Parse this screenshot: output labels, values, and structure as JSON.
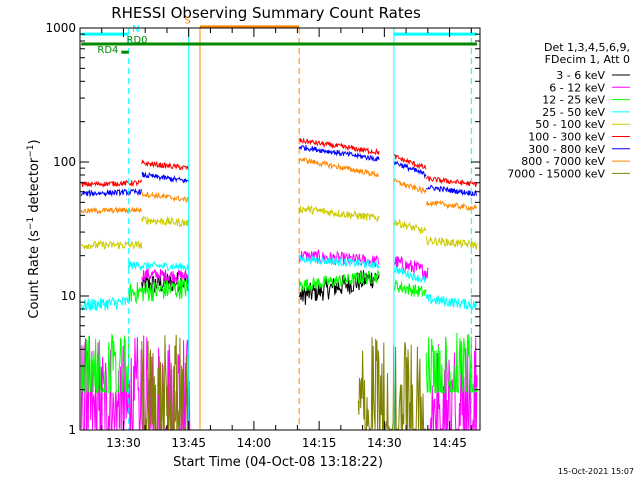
{
  "chart_data": {
    "type": "line",
    "title": "RHESSI Observing Summary Count Rates",
    "xlabel": "Start Time (04-Oct-08 13:18:22)",
    "ylabel": "Count Rate (s⁻¹ detector⁻¹)",
    "ylabel_base": "Count Rate (s",
    "ylabel_mid": " detector",
    "ylabel_end": ")",
    "ylabel_sup": "−1",
    "yscale": "log",
    "ylim": [
      1,
      1000
    ],
    "ytick_labels": [
      "1",
      "10",
      "100",
      "1000"
    ],
    "xlim_min": [
      20,
      112
    ],
    "xtick_labels": [
      "13:30",
      "13:45",
      "14:00",
      "14:15",
      "14:30",
      "14:45"
    ],
    "xtick_min": [
      30,
      45,
      60,
      75,
      90,
      105
    ],
    "legend_header": [
      "Det 1,3,4,5,6,9,",
      "FDecim 1, Att 0"
    ],
    "legend_position": "right-outside",
    "timestamp": "15-Oct-2021 15:07",
    "series": [
      {
        "name": "3 - 6 keV",
        "color": "#000000",
        "segments": [
          {
            "t0": 34.2,
            "t1": 45.0,
            "v0": 12,
            "v1": 13,
            "noise": 0.08,
            "lo_clip": 0
          },
          {
            "t0": 70.4,
            "t1": 88.8,
            "v0": 10,
            "v1": 14,
            "noise": 0.08,
            "lo_clip": 0
          }
        ]
      },
      {
        "name": "6 - 12 keV",
        "color": "#ff00ff",
        "segments": [
          {
            "t0": 20.3,
            "t1": 45.4,
            "v0": 1.3,
            "v1": 1.3,
            "noise": 0.6,
            "lo_clip": 1
          },
          {
            "t0": 34.2,
            "t1": 45.0,
            "v0": 14.5,
            "v1": 14.0,
            "noise": 0.05,
            "lo_clip": 0
          },
          {
            "t0": 70.4,
            "t1": 88.8,
            "v0": 20,
            "v1": 18,
            "noise": 0.05,
            "lo_clip": 0
          },
          {
            "t0": 92.2,
            "t1": 100,
            "v0": 18,
            "v1": 15,
            "noise": 0.06,
            "lo_clip": 0
          },
          {
            "t0": 100,
            "t1": 111.3,
            "v0": 1.3,
            "v1": 1.3,
            "noise": 0.6,
            "lo_clip": 1
          }
        ]
      },
      {
        "name": "12 - 25 keV",
        "color": "#00ff00",
        "segments": [
          {
            "t0": 20.3,
            "t1": 31.2,
            "v0": 2.4,
            "v1": 2.4,
            "noise": 0.35,
            "lo_clip": 1.9
          },
          {
            "t0": 31.2,
            "t1": 45.0,
            "v0": 10.5,
            "v1": 11.5,
            "noise": 0.08,
            "lo_clip": 0
          },
          {
            "t0": 70.4,
            "t1": 88.8,
            "v0": 12,
            "v1": 14,
            "noise": 0.05,
            "lo_clip": 0
          },
          {
            "t0": 92.2,
            "t1": 99.6,
            "v0": 12,
            "v1": 10.5,
            "noise": 0.05,
            "lo_clip": 0
          },
          {
            "t0": 99.6,
            "t1": 111.3,
            "v0": 2.5,
            "v1": 2.4,
            "noise": 0.35,
            "lo_clip": 1.9
          }
        ]
      },
      {
        "name": "25 - 50 keV",
        "color": "#00ffff",
        "segments": [
          {
            "t0": 20.3,
            "t1": 31.0,
            "v0": 8.5,
            "v1": 9.0,
            "noise": 0.05,
            "lo_clip": 0
          },
          {
            "t0": 31.0,
            "t1": 45.0,
            "v0": 17,
            "v1": 16.5,
            "noise": 0.03,
            "lo_clip": 0
          },
          {
            "t0": 70.4,
            "t1": 88.8,
            "v0": 19,
            "v1": 17,
            "noise": 0.03,
            "lo_clip": 0
          },
          {
            "t0": 92.2,
            "t1": 99.6,
            "v0": 16,
            "v1": 13,
            "noise": 0.03,
            "lo_clip": 0
          },
          {
            "t0": 99.6,
            "t1": 111.3,
            "v0": 9.5,
            "v1": 8.5,
            "noise": 0.04,
            "lo_clip": 0
          }
        ]
      },
      {
        "name": "50 - 100 keV",
        "color": "#cccc00",
        "segments": [
          {
            "t0": 20.3,
            "t1": 34.2,
            "v0": 24,
            "v1": 24,
            "noise": 0.03,
            "lo_clip": 0
          },
          {
            "t0": 34.2,
            "t1": 45.0,
            "v0": 37,
            "v1": 35,
            "noise": 0.03,
            "lo_clip": 0
          },
          {
            "t0": 70.4,
            "t1": 88.8,
            "v0": 45,
            "v1": 38,
            "noise": 0.03,
            "lo_clip": 0
          },
          {
            "t0": 92.2,
            "t1": 99.6,
            "v0": 36,
            "v1": 30,
            "noise": 0.03,
            "lo_clip": 0
          },
          {
            "t0": 99.6,
            "t1": 111.3,
            "v0": 26,
            "v1": 24,
            "noise": 0.03,
            "lo_clip": 0
          }
        ]
      },
      {
        "name": "100 - 300 keV",
        "color": "#ff0000",
        "segments": [
          {
            "t0": 20.3,
            "t1": 34.2,
            "v0": 68,
            "v1": 70,
            "noise": 0.02,
            "lo_clip": 0
          },
          {
            "t0": 34.2,
            "t1": 45.0,
            "v0": 98,
            "v1": 90,
            "noise": 0.02,
            "lo_clip": 0
          },
          {
            "t0": 70.4,
            "t1": 88.8,
            "v0": 145,
            "v1": 118,
            "noise": 0.02,
            "lo_clip": 0
          },
          {
            "t0": 92.2,
            "t1": 99.6,
            "v0": 110,
            "v1": 90,
            "noise": 0.02,
            "lo_clip": 0
          },
          {
            "t0": 99.6,
            "t1": 111.3,
            "v0": 75,
            "v1": 68,
            "noise": 0.02,
            "lo_clip": 0
          }
        ]
      },
      {
        "name": "300 - 800 keV",
        "color": "#0000ff",
        "segments": [
          {
            "t0": 20.3,
            "t1": 34.2,
            "v0": 58,
            "v1": 60,
            "noise": 0.02,
            "lo_clip": 0
          },
          {
            "t0": 34.2,
            "t1": 45.0,
            "v0": 80,
            "v1": 72,
            "noise": 0.02,
            "lo_clip": 0
          },
          {
            "t0": 70.4,
            "t1": 88.8,
            "v0": 130,
            "v1": 105,
            "noise": 0.02,
            "lo_clip": 0
          },
          {
            "t0": 92.2,
            "t1": 99.6,
            "v0": 100,
            "v1": 80,
            "noise": 0.02,
            "lo_clip": 0
          },
          {
            "t0": 99.6,
            "t1": 111.3,
            "v0": 65,
            "v1": 58,
            "noise": 0.02,
            "lo_clip": 0
          }
        ]
      },
      {
        "name": "800 - 7000 keV",
        "color": "#ff8800",
        "segments": [
          {
            "t0": 20.3,
            "t1": 34.2,
            "v0": 43,
            "v1": 44,
            "noise": 0.02,
            "lo_clip": 0
          },
          {
            "t0": 34.2,
            "t1": 45.0,
            "v0": 58,
            "v1": 52,
            "noise": 0.02,
            "lo_clip": 0
          },
          {
            "t0": 70.4,
            "t1": 88.8,
            "v0": 105,
            "v1": 80,
            "noise": 0.02,
            "lo_clip": 0
          },
          {
            "t0": 92.2,
            "t1": 99.6,
            "v0": 72,
            "v1": 60,
            "noise": 0.02,
            "lo_clip": 0
          },
          {
            "t0": 99.6,
            "t1": 111.3,
            "v0": 50,
            "v1": 45,
            "noise": 0.02,
            "lo_clip": 0
          }
        ]
      },
      {
        "name": "7000 - 15000 keV",
        "color": "#808000",
        "segments": [
          {
            "t0": 34.2,
            "t1": 45.0,
            "v0": 1.3,
            "v1": 1.3,
            "noise": 0.6,
            "lo_clip": 1
          },
          {
            "t0": 84.0,
            "t1": 99.6,
            "v0": 1.3,
            "v1": 1.3,
            "noise": 0.6,
            "lo_clip": 1
          }
        ]
      }
    ],
    "vlines": [
      {
        "t": 31.2,
        "color": "#00ffff",
        "style": "dashed"
      },
      {
        "t": 45.0,
        "color": "#00ffff",
        "style": "solid"
      },
      {
        "t": 47.6,
        "color": "#ff8800",
        "style": "solid"
      },
      {
        "t": 70.4,
        "color": "#ff8800",
        "style": "dashed"
      },
      {
        "t": 92.2,
        "color": "#00ffff",
        "style": "solid"
      },
      {
        "t": 110.0,
        "color": "#00ffff",
        "style": "dashed"
      }
    ],
    "flag_bars": [
      {
        "t0": 20.3,
        "t1": 31.2,
        "y": 900,
        "color": "#00ffff",
        "label": "N",
        "label_t": 32.0,
        "label_y": 930,
        "label_color": "#00ffff"
      },
      {
        "t0": 92.2,
        "t1": 111.3,
        "y": 900,
        "color": "#00ffff",
        "label": "",
        "label_t": 0,
        "label_y": 0,
        "label_color": "#00ffff"
      },
      {
        "t0": 47.6,
        "t1": 70.4,
        "y": 1020,
        "color": "#ff8800",
        "label": "S",
        "label_t": 44.0,
        "label_y": 1080,
        "label_color": "#ff8800"
      },
      {
        "t0": 20.3,
        "t1": 111.3,
        "y": 760,
        "color": "#008800",
        "label": "RD0",
        "label_t": 30.7,
        "label_y": 770,
        "label_color": "#008800"
      },
      {
        "t0": 29.5,
        "t1": 31.2,
        "y": 660,
        "color": "#008800",
        "label": "RD4",
        "label_t": 24.0,
        "label_y": 650,
        "label_color": "#008800"
      }
    ]
  }
}
